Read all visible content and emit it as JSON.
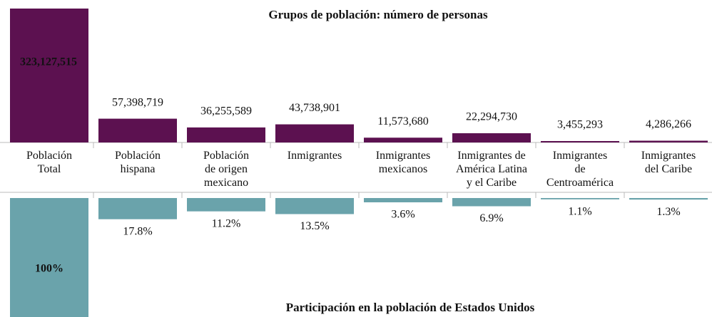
{
  "chart_data": [
    {
      "type": "bar",
      "title": "Grupos de población: número de personas",
      "categories": [
        "Población\nTotal",
        "Población\nhispana",
        "Población\nde origen\nmexicano",
        "Inmigrantes",
        "Inmigrantes\nmexicanos",
        "Inmigrantes de\nAmérica Latina\ny el Caribe",
        "Inmigrantes\nde\nCentroamérica",
        "Inmigrantes\ndel Caribe"
      ],
      "values": [
        323127515,
        57398719,
        36255589,
        43738901,
        11573680,
        22294730,
        3455293,
        4286266
      ],
      "value_labels": [
        "323,127,515",
        "57,398,719",
        "36,255,589",
        "43,738,901",
        "11,573,680",
        "22,294,730",
        "3,455,293",
        "4,286,266"
      ],
      "color": "#5c1150",
      "ylim": [
        0,
        323127515
      ]
    },
    {
      "type": "bar",
      "title": "Participación en la población de Estados Unidos",
      "values": [
        100,
        17.8,
        11.2,
        13.5,
        3.6,
        6.9,
        1.1,
        1.3
      ],
      "value_labels": [
        "100%",
        "17.8%",
        "11.2%",
        "13.5%",
        "3.6%",
        "6.9%",
        "1.1%",
        "1.3%"
      ],
      "color": "#6aa3ab",
      "ylim": [
        0,
        100
      ]
    }
  ]
}
